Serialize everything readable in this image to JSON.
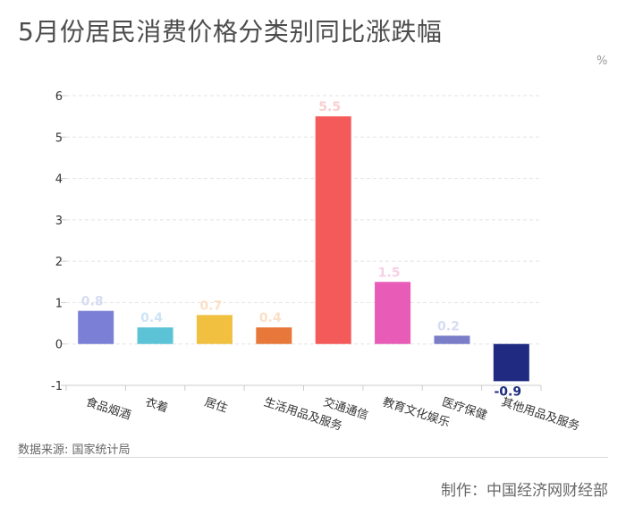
{
  "title": "5月份居民消费价格分类别同比涨跌幅",
  "unit_label": "%",
  "source": "数据来源: 国家统计局",
  "credit": "制作：中国经济网财经部",
  "chart_data": {
    "type": "bar",
    "title": "5月份居民消费价格分类别同比涨跌幅",
    "ylabel": "%",
    "xlabel": "",
    "ylim": [
      -1,
      6
    ],
    "yticks": [
      -1,
      0,
      1,
      2,
      3,
      4,
      5,
      6
    ],
    "grid": true,
    "categories": [
      "食品烟酒",
      "衣着",
      "居住",
      "生活用品及服务",
      "交通通信",
      "教育文化娱乐",
      "医疗保健",
      "其他用品及服务"
    ],
    "values": [
      0.8,
      0.4,
      0.7,
      0.4,
      5.5,
      1.5,
      0.2,
      -0.9
    ],
    "value_labels": [
      "0.8",
      "0.4",
      "0.7",
      "0.4",
      "5.5",
      "1.5",
      "0.2",
      "-0.9"
    ],
    "colors": [
      "#7b7fd6",
      "#5cc3d6",
      "#f2c040",
      "#e8773a",
      "#f55a5a",
      "#e85cb8",
      "#7a7ec8",
      "#1f2a80"
    ],
    "label_colors": [
      "#d6dcf2",
      "#cde4f7",
      "#fbe0c6",
      "#fbe0c6",
      "#f7d0d0",
      "#f5d0e6",
      "#d6dcf2",
      "#1f2a80"
    ]
  }
}
